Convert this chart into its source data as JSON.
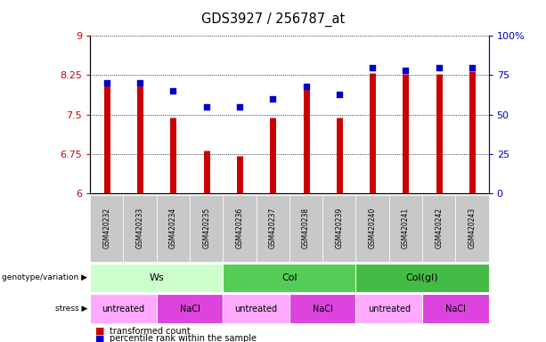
{
  "title": "GDS3927 / 256787_at",
  "samples": [
    "GSM420232",
    "GSM420233",
    "GSM420234",
    "GSM420235",
    "GSM420236",
    "GSM420237",
    "GSM420238",
    "GSM420239",
    "GSM420240",
    "GSM420241",
    "GSM420242",
    "GSM420243"
  ],
  "red_values": [
    8.1,
    8.15,
    7.45,
    6.82,
    6.72,
    7.45,
    8.08,
    7.45,
    8.3,
    8.28,
    8.28,
    8.33
  ],
  "blue_values": [
    70,
    70,
    65,
    55,
    55,
    60,
    68,
    63,
    80,
    78,
    80,
    80
  ],
  "ylim_left": [
    6,
    9
  ],
  "ylim_right": [
    0,
    100
  ],
  "yticks_left": [
    6,
    6.75,
    7.5,
    8.25,
    9
  ],
  "yticks_right": [
    0,
    25,
    50,
    75,
    100
  ],
  "ytick_labels_left": [
    "6",
    "6.75",
    "7.5",
    "8.25",
    "9"
  ],
  "ytick_labels_right": [
    "0",
    "25",
    "50",
    "75",
    "100%"
  ],
  "bar_color": "#cc0000",
  "dot_color": "#0000cc",
  "xticklabel_bg": "#c8c8c8",
  "genotype_groups": [
    {
      "label": "Ws",
      "start": 0,
      "end": 3,
      "color": "#ccffcc"
    },
    {
      "label": "Col",
      "start": 4,
      "end": 7,
      "color": "#55cc55"
    },
    {
      "label": "Col(gl)",
      "start": 8,
      "end": 11,
      "color": "#44bb44"
    }
  ],
  "stress_groups": [
    {
      "label": "untreated",
      "start": 0,
      "end": 1,
      "color": "#ffaaff"
    },
    {
      "label": "NaCl",
      "start": 2,
      "end": 3,
      "color": "#dd44dd"
    },
    {
      "label": "untreated",
      "start": 4,
      "end": 5,
      "color": "#ffaaff"
    },
    {
      "label": "NaCl",
      "start": 6,
      "end": 7,
      "color": "#dd44dd"
    },
    {
      "label": "untreated",
      "start": 8,
      "end": 9,
      "color": "#ffaaff"
    },
    {
      "label": "NaCl",
      "start": 10,
      "end": 11,
      "color": "#dd44dd"
    }
  ],
  "legend_items": [
    {
      "label": "transformed count",
      "color": "#cc0000"
    },
    {
      "label": "percentile rank within the sample",
      "color": "#0000cc"
    }
  ],
  "left_axis_color": "#cc0000",
  "right_axis_color": "#0000cc",
  "genotype_label": "genotype/variation",
  "stress_label": "stress"
}
